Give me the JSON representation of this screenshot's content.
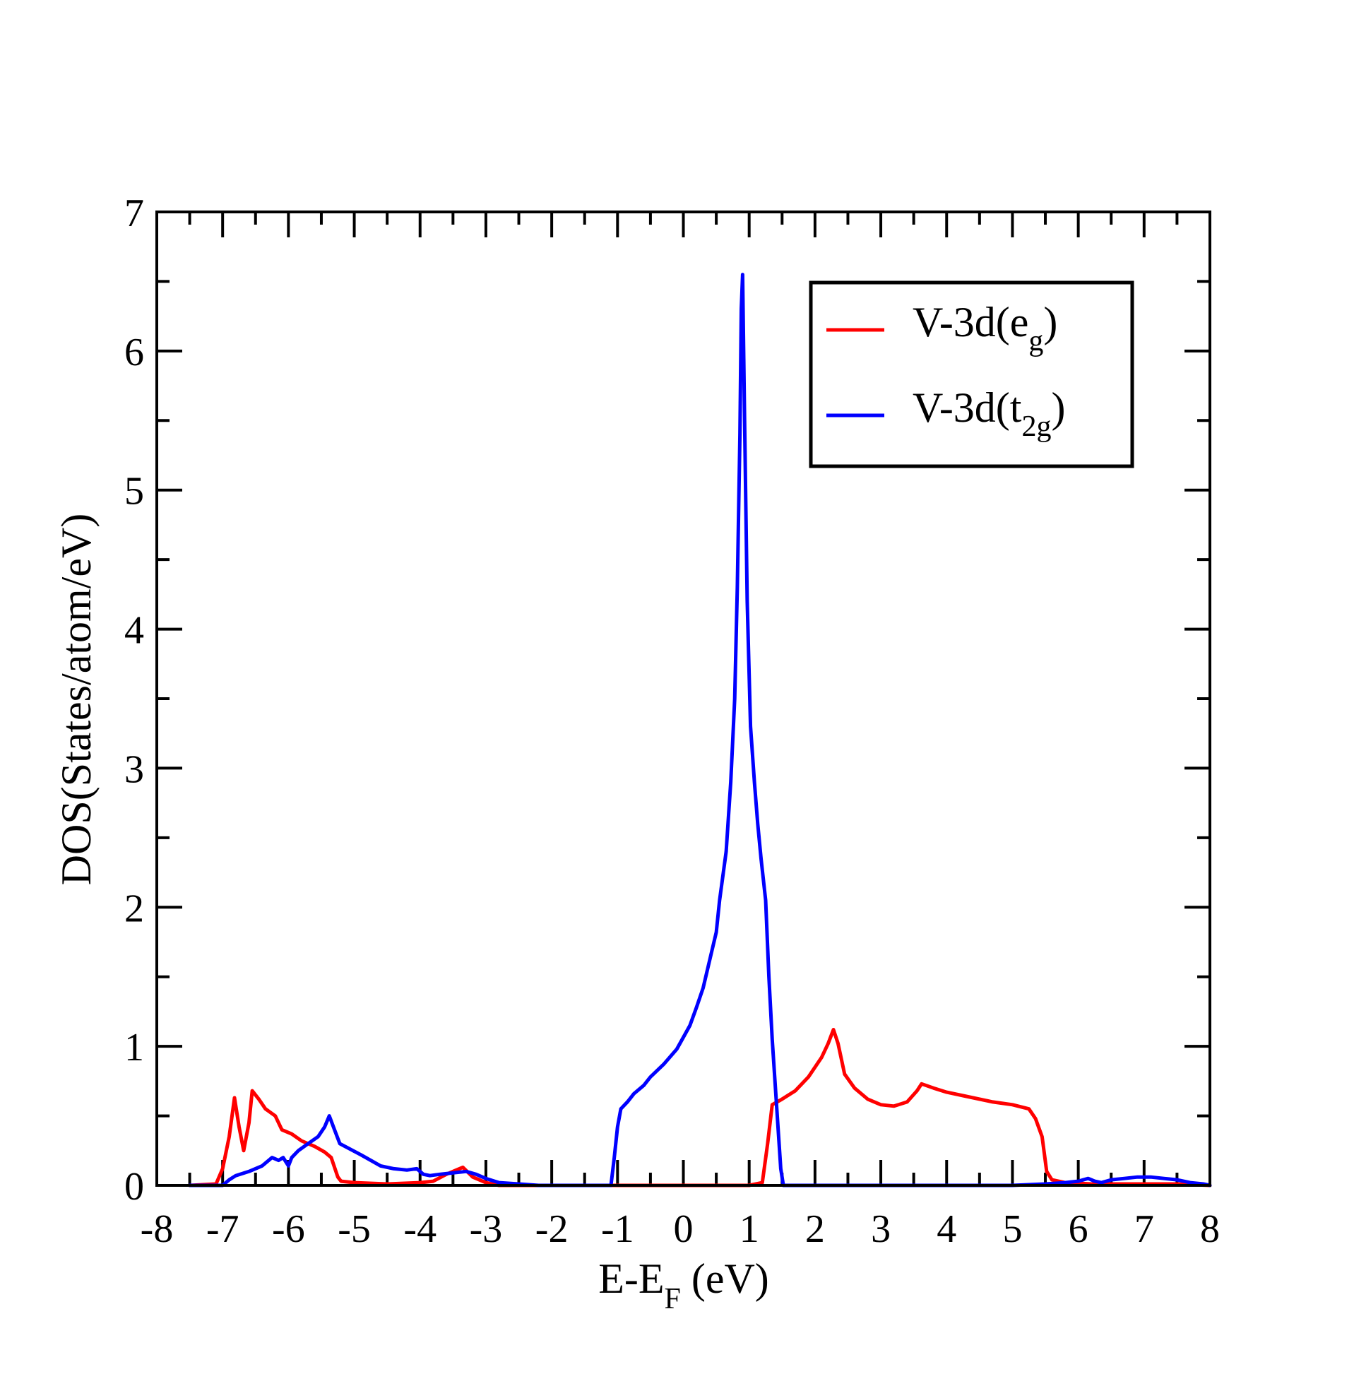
{
  "chart_data": {
    "type": "line",
    "title": "",
    "xlabel": {
      "main": "E-E",
      "sub": "F",
      "suffix": " (eV)"
    },
    "ylabel": "DOS(States/atom/eV)",
    "xlim": [
      -8,
      8
    ],
    "ylim": [
      0,
      7
    ],
    "x_ticks": [
      -8,
      -7,
      -6,
      -5,
      -4,
      -3,
      -2,
      -1,
      0,
      1,
      2,
      3,
      4,
      5,
      6,
      7,
      8
    ],
    "x_tick_labels": [
      "-8",
      "-7",
      "-6",
      "-5",
      "-4",
      "-3",
      "-2",
      "-1",
      "0",
      "1",
      "2",
      "3",
      "4",
      "5",
      "6",
      "7",
      "8"
    ],
    "y_ticks": [
      0,
      1,
      2,
      3,
      4,
      5,
      6,
      7
    ],
    "y_tick_labels": [
      "0",
      "1",
      "2",
      "3",
      "4",
      "5",
      "6",
      "7"
    ],
    "grid": false,
    "legend_position": "top-right",
    "series": [
      {
        "name": "V-3d(eg)",
        "legend_main": "V-3d(e",
        "legend_sub": "g",
        "legend_suffix": ")",
        "color": "#ff0000",
        "points": [
          [
            -7.5,
            0.0
          ],
          [
            -7.1,
            0.01
          ],
          [
            -7.0,
            0.12
          ],
          [
            -6.9,
            0.35
          ],
          [
            -6.82,
            0.63
          ],
          [
            -6.75,
            0.42
          ],
          [
            -6.68,
            0.25
          ],
          [
            -6.6,
            0.45
          ],
          [
            -6.55,
            0.68
          ],
          [
            -6.45,
            0.62
          ],
          [
            -6.35,
            0.55
          ],
          [
            -6.2,
            0.5
          ],
          [
            -6.1,
            0.4
          ],
          [
            -5.95,
            0.37
          ],
          [
            -5.8,
            0.32
          ],
          [
            -5.6,
            0.28
          ],
          [
            -5.45,
            0.24
          ],
          [
            -5.35,
            0.2
          ],
          [
            -5.25,
            0.06
          ],
          [
            -5.2,
            0.03
          ],
          [
            -5.0,
            0.02
          ],
          [
            -4.5,
            0.01
          ],
          [
            -4.0,
            0.02
          ],
          [
            -3.8,
            0.03
          ],
          [
            -3.6,
            0.08
          ],
          [
            -3.45,
            0.11
          ],
          [
            -3.35,
            0.13
          ],
          [
            -3.2,
            0.06
          ],
          [
            -3.0,
            0.02
          ],
          [
            -2.8,
            0.0
          ],
          [
            -2.0,
            0.0
          ],
          [
            -1.0,
            0.0
          ],
          [
            0.0,
            0.0
          ],
          [
            1.0,
            0.0
          ],
          [
            1.2,
            0.02
          ],
          [
            1.28,
            0.3
          ],
          [
            1.35,
            0.58
          ],
          [
            1.5,
            0.62
          ],
          [
            1.7,
            0.68
          ],
          [
            1.9,
            0.78
          ],
          [
            2.1,
            0.92
          ],
          [
            2.2,
            1.02
          ],
          [
            2.28,
            1.12
          ],
          [
            2.35,
            1.02
          ],
          [
            2.45,
            0.8
          ],
          [
            2.6,
            0.7
          ],
          [
            2.8,
            0.62
          ],
          [
            3.0,
            0.58
          ],
          [
            3.2,
            0.57
          ],
          [
            3.4,
            0.6
          ],
          [
            3.55,
            0.68
          ],
          [
            3.62,
            0.73
          ],
          [
            3.8,
            0.7
          ],
          [
            4.0,
            0.67
          ],
          [
            4.3,
            0.64
          ],
          [
            4.7,
            0.6
          ],
          [
            5.0,
            0.58
          ],
          [
            5.25,
            0.55
          ],
          [
            5.35,
            0.48
          ],
          [
            5.45,
            0.35
          ],
          [
            5.52,
            0.1
          ],
          [
            5.6,
            0.04
          ],
          [
            5.8,
            0.02
          ],
          [
            6.2,
            0.01
          ],
          [
            7.0,
            0.01
          ],
          [
            7.5,
            0.01
          ],
          [
            8.0,
            0.0
          ]
        ]
      },
      {
        "name": "V-3d(t2g)",
        "legend_main": "V-3d(t",
        "legend_sub": "2g",
        "legend_suffix": ")",
        "color": "#0000ff",
        "points": [
          [
            -7.5,
            0.0
          ],
          [
            -7.0,
            0.0
          ],
          [
            -6.9,
            0.04
          ],
          [
            -6.8,
            0.07
          ],
          [
            -6.6,
            0.1
          ],
          [
            -6.4,
            0.14
          ],
          [
            -6.25,
            0.2
          ],
          [
            -6.15,
            0.18
          ],
          [
            -6.08,
            0.2
          ],
          [
            -6.0,
            0.14
          ],
          [
            -5.95,
            0.2
          ],
          [
            -5.85,
            0.25
          ],
          [
            -5.7,
            0.3
          ],
          [
            -5.55,
            0.35
          ],
          [
            -5.45,
            0.42
          ],
          [
            -5.38,
            0.5
          ],
          [
            -5.3,
            0.4
          ],
          [
            -5.22,
            0.3
          ],
          [
            -5.1,
            0.27
          ],
          [
            -4.9,
            0.22
          ],
          [
            -4.75,
            0.18
          ],
          [
            -4.6,
            0.14
          ],
          [
            -4.4,
            0.12
          ],
          [
            -4.2,
            0.11
          ],
          [
            -4.05,
            0.12
          ],
          [
            -3.95,
            0.08
          ],
          [
            -3.85,
            0.07
          ],
          [
            -3.7,
            0.08
          ],
          [
            -3.5,
            0.09
          ],
          [
            -3.3,
            0.1
          ],
          [
            -3.15,
            0.08
          ],
          [
            -3.0,
            0.05
          ],
          [
            -2.8,
            0.02
          ],
          [
            -2.5,
            0.01
          ],
          [
            -2.2,
            0.0
          ],
          [
            -1.1,
            0.0
          ],
          [
            -1.05,
            0.2
          ],
          [
            -1.0,
            0.42
          ],
          [
            -0.95,
            0.55
          ],
          [
            -0.85,
            0.6
          ],
          [
            -0.75,
            0.66
          ],
          [
            -0.6,
            0.72
          ],
          [
            -0.5,
            0.78
          ],
          [
            -0.3,
            0.87
          ],
          [
            -0.1,
            0.98
          ],
          [
            0.1,
            1.15
          ],
          [
            0.2,
            1.28
          ],
          [
            0.3,
            1.42
          ],
          [
            0.4,
            1.62
          ],
          [
            0.5,
            1.82
          ],
          [
            0.55,
            2.05
          ],
          [
            0.65,
            2.4
          ],
          [
            0.72,
            2.9
          ],
          [
            0.78,
            3.5
          ],
          [
            0.82,
            4.3
          ],
          [
            0.86,
            5.4
          ],
          [
            0.88,
            6.3
          ],
          [
            0.9,
            6.55
          ],
          [
            0.93,
            5.5
          ],
          [
            0.97,
            4.2
          ],
          [
            1.02,
            3.3
          ],
          [
            1.08,
            2.9
          ],
          [
            1.13,
            2.6
          ],
          [
            1.18,
            2.35
          ],
          [
            1.25,
            2.05
          ],
          [
            1.3,
            1.5
          ],
          [
            1.35,
            1.05
          ],
          [
            1.42,
            0.55
          ],
          [
            1.48,
            0.12
          ],
          [
            1.52,
            0.0
          ],
          [
            2.0,
            0.0
          ],
          [
            3.0,
            0.0
          ],
          [
            4.0,
            0.0
          ],
          [
            5.0,
            0.0
          ],
          [
            5.5,
            0.01
          ],
          [
            5.8,
            0.02
          ],
          [
            6.0,
            0.03
          ],
          [
            6.15,
            0.05
          ],
          [
            6.25,
            0.03
          ],
          [
            6.35,
            0.02
          ],
          [
            6.5,
            0.04
          ],
          [
            6.7,
            0.05
          ],
          [
            6.9,
            0.06
          ],
          [
            7.1,
            0.06
          ],
          [
            7.3,
            0.05
          ],
          [
            7.5,
            0.04
          ],
          [
            7.7,
            0.02
          ],
          [
            7.9,
            0.01
          ],
          [
            8.0,
            0.0
          ]
        ]
      }
    ]
  }
}
